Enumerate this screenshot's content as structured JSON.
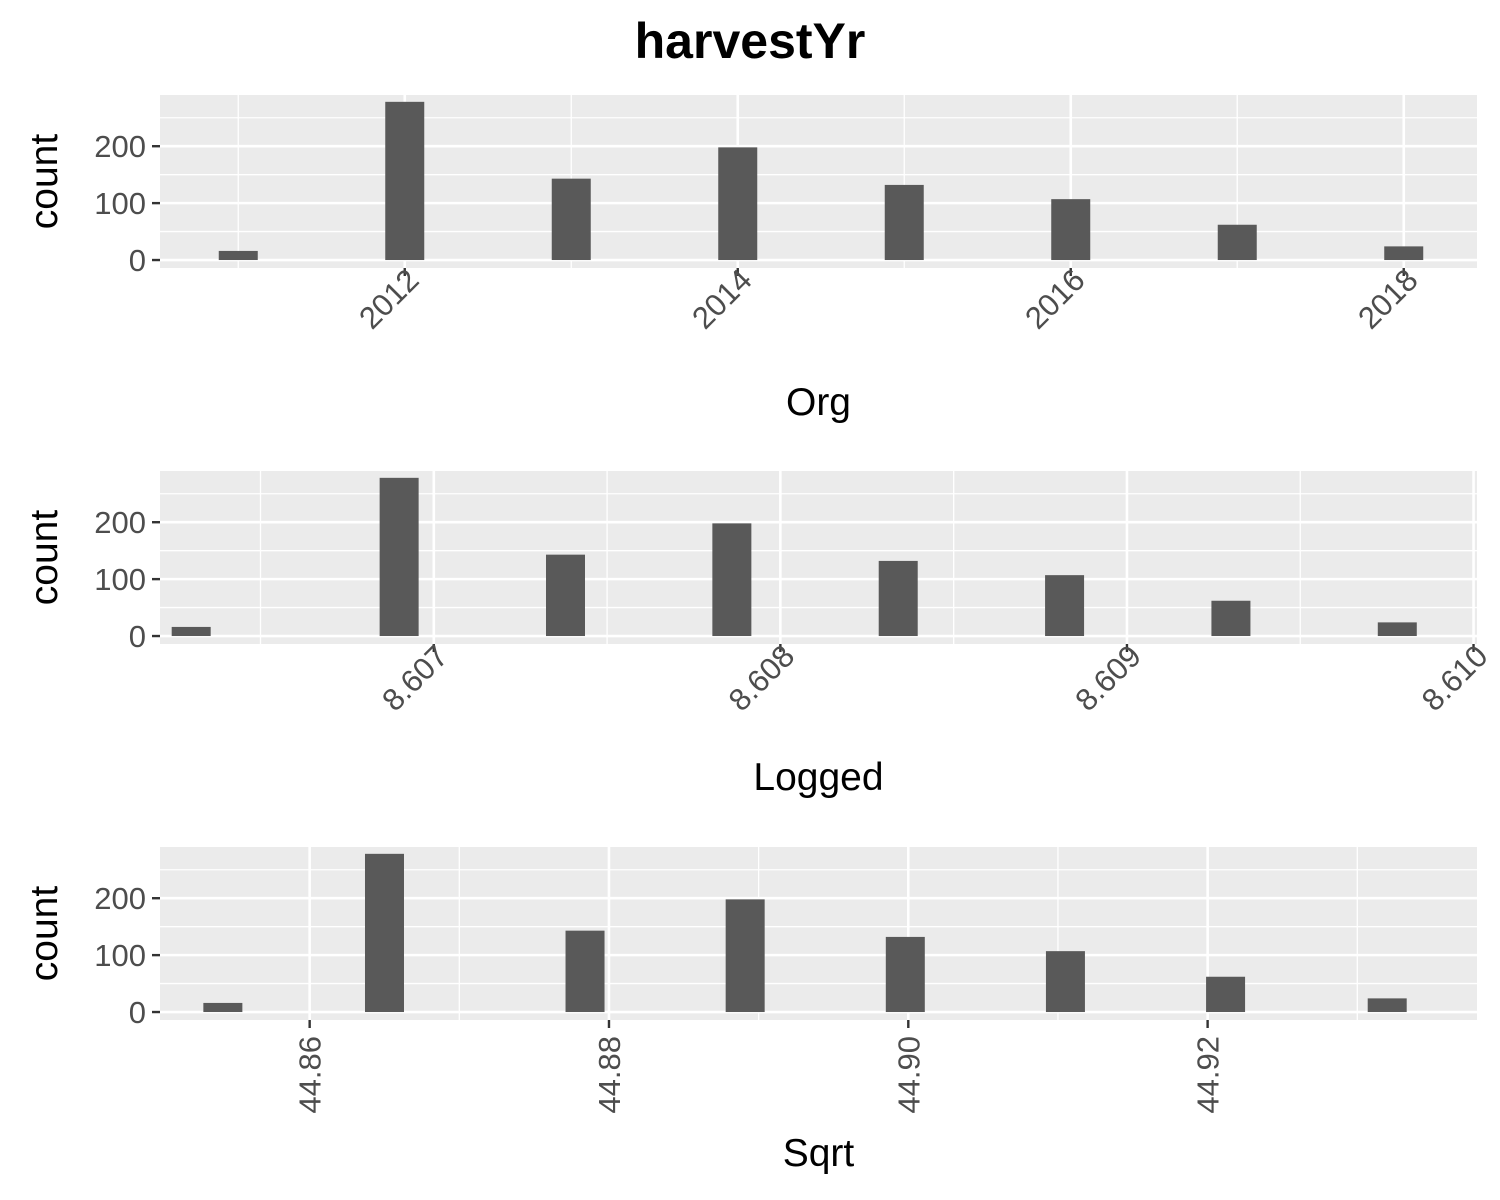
{
  "figure": {
    "title": "harvestYr"
  },
  "chart_data": [
    {
      "type": "bar",
      "name": "Org",
      "xlabel": "Org",
      "ylabel": "count",
      "x": [
        2011,
        2012,
        2013,
        2014,
        2015,
        2016,
        2017,
        2018
      ],
      "values": [
        16,
        278,
        143,
        198,
        132,
        107,
        62,
        24
      ],
      "xlim": [
        2010.53,
        2018.44
      ],
      "ylim": [
        -14,
        290
      ],
      "xticks": [
        2012,
        2014,
        2016,
        2018
      ],
      "xtick_labels": [
        "2012",
        "2014",
        "2016",
        "2018"
      ],
      "yticks": [
        0,
        100,
        200
      ],
      "ytick_labels": [
        "0",
        "100",
        "200"
      ],
      "xtick_rotation": 45,
      "bar_color": "#595959",
      "panel_bg": "#ebebeb",
      "grid": true
    },
    {
      "type": "bar",
      "name": "Logged",
      "xlabel": "Logged",
      "ylabel": "count",
      "x": [
        8.6063,
        8.6069,
        8.60738,
        8.60786,
        8.60834,
        8.60882,
        8.6093,
        8.60978
      ],
      "values": [
        16,
        278,
        143,
        198,
        132,
        107,
        62,
        24
      ],
      "xlim": [
        8.60621,
        8.61001
      ],
      "ylim": [
        -14,
        290
      ],
      "xticks": [
        8.607,
        8.608,
        8.609,
        8.61
      ],
      "xtick_labels": [
        "8.607",
        "8.608",
        "8.609",
        "8.610"
      ],
      "yticks": [
        0,
        100,
        200
      ],
      "ytick_labels": [
        "0",
        "100",
        "200"
      ],
      "xtick_rotation": 45,
      "bar_color": "#595959",
      "panel_bg": "#ebebeb",
      "grid": true
    },
    {
      "type": "bar",
      "name": "Sqrt",
      "xlabel": "Sqrt",
      "ylabel": "count",
      "x": [
        44.8542,
        44.865,
        44.8784,
        44.8891,
        44.8998,
        44.9105,
        44.9212,
        44.932
      ],
      "values": [
        16,
        278,
        143,
        198,
        132,
        107,
        62,
        24
      ],
      "xlim": [
        44.85,
        44.938
      ],
      "ylim": [
        -14,
        290
      ],
      "xticks": [
        44.86,
        44.88,
        44.9,
        44.92
      ],
      "xtick_labels": [
        "44.86",
        "44.88",
        "44.90",
        "44.92"
      ],
      "yticks": [
        0,
        100,
        200
      ],
      "ytick_labels": [
        "0",
        "100",
        "200"
      ],
      "xtick_rotation": 90,
      "bar_color": "#595959",
      "panel_bg": "#ebebeb",
      "grid": true
    }
  ]
}
